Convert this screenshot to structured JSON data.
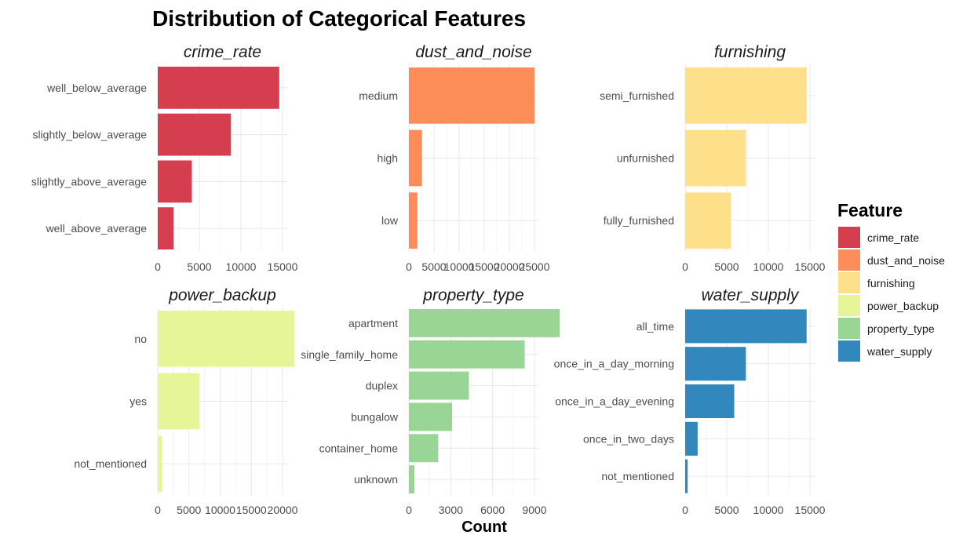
{
  "chart_data": {
    "type": "bar",
    "orientation": "horizontal",
    "title": "Distribution of Categorical Features",
    "xlabel": "Count",
    "legend": {
      "title": "Feature",
      "position": "right",
      "entries": [
        {
          "label": "crime_rate",
          "color": "#D53E4F"
        },
        {
          "label": "dust_and_noise",
          "color": "#FC8D59"
        },
        {
          "label": "furnishing",
          "color": "#FEE08B"
        },
        {
          "label": "power_backup",
          "color": "#E6F598"
        },
        {
          "label": "property_type",
          "color": "#99D594"
        },
        {
          "label": "water_supply",
          "color": "#3288BD"
        }
      ]
    },
    "facets": [
      {
        "name": "crime_rate",
        "color": "#D53E4F",
        "categories": [
          "well_below_average",
          "slightly_below_average",
          "slightly_above_average",
          "well_above_average"
        ],
        "values": [
          14600,
          8800,
          4100,
          1900
        ],
        "xlim": [
          0,
          15000
        ],
        "ticks": [
          0,
          5000,
          10000,
          15000
        ],
        "tick_labels": [
          "0",
          "5000",
          "10000",
          "15000"
        ]
      },
      {
        "name": "dust_and_noise",
        "color": "#FC8D59",
        "categories": [
          "medium",
          "high",
          "low"
        ],
        "values": [
          25000,
          2600,
          1700
        ],
        "xlim": [
          0,
          25000
        ],
        "ticks": [
          0,
          5000,
          10000,
          15000,
          20000,
          25000
        ],
        "tick_labels": [
          "0",
          "5000",
          "10000",
          "15000",
          "20000",
          "25000"
        ]
      },
      {
        "name": "furnishing",
        "color": "#FEE08B",
        "categories": [
          "semi_furnished",
          "unfurnished",
          "fully_furnished"
        ],
        "values": [
          14600,
          7300,
          5500
        ],
        "xlim": [
          0,
          15000
        ],
        "ticks": [
          0,
          5000,
          10000,
          15000
        ],
        "tick_labels": [
          "0",
          "5000",
          "10000",
          "15000"
        ]
      },
      {
        "name": "power_backup",
        "color": "#E6F598",
        "categories": [
          "no",
          "yes",
          "not_mentioned"
        ],
        "values": [
          21900,
          6700,
          700
        ],
        "xlim": [
          0,
          20000
        ],
        "ticks": [
          0,
          5000,
          10000,
          15000,
          20000
        ],
        "tick_labels": [
          "0",
          "5000",
          "10000",
          "15000",
          "20000"
        ]
      },
      {
        "name": "property_type",
        "color": "#99D594",
        "categories": [
          "apartment",
          "single_family_home",
          "duplex",
          "bungalow",
          "container_home",
          "unknown"
        ],
        "values": [
          10800,
          8300,
          4300,
          3100,
          2100,
          400
        ],
        "xlim": [
          0,
          9000
        ],
        "ticks": [
          0,
          3000,
          6000,
          9000
        ],
        "tick_labels": [
          "0",
          "3000",
          "6000",
          "9000"
        ]
      },
      {
        "name": "water_supply",
        "color": "#3288BD",
        "categories": [
          "all_time",
          "once_in_a_day_morning",
          "once_in_a_day_evening",
          "once_in_two_days",
          "not_mentioned"
        ],
        "values": [
          14600,
          7300,
          5900,
          1500,
          300
        ],
        "xlim": [
          0,
          15000
        ],
        "ticks": [
          0,
          5000,
          10000,
          15000
        ],
        "tick_labels": [
          "0",
          "5000",
          "10000",
          "15000"
        ]
      }
    ]
  }
}
